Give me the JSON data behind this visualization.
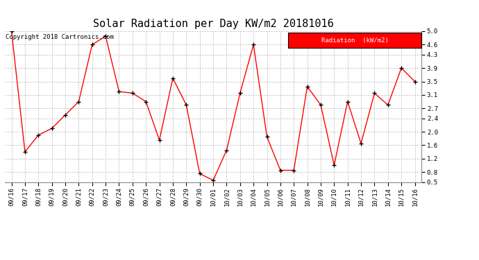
{
  "title": "Solar Radiation per Day KW/m2 20181016",
  "copyright_text": "Copyright 2018 Cartronics.com",
  "legend_label": "Radiation  (kW/m2)",
  "x_labels": [
    "09/16",
    "09/17",
    "09/18",
    "09/19",
    "09/20",
    "09/21",
    "09/22",
    "09/23",
    "09/24",
    "09/25",
    "09/26",
    "09/27",
    "09/28",
    "09/29",
    "09/30",
    "10/01",
    "10/02",
    "10/03",
    "10/04",
    "10/05",
    "10/06",
    "10/07",
    "10/08",
    "10/09",
    "10/10",
    "10/11",
    "10/12",
    "10/13",
    "10/14",
    "10/15",
    "10/16"
  ],
  "y_values": [
    5.0,
    1.4,
    1.9,
    2.1,
    2.5,
    2.9,
    4.6,
    4.85,
    3.2,
    3.15,
    2.9,
    1.75,
    3.6,
    2.8,
    0.75,
    0.55,
    1.45,
    3.15,
    4.6,
    1.85,
    0.85,
    0.85,
    3.35,
    2.8,
    1.0,
    2.9,
    1.65,
    3.15,
    2.8,
    3.9,
    3.5
  ],
  "line_color": "red",
  "marker_color": "black",
  "grid_color": "#bbbbbb",
  "background_color": "#ffffff",
  "plot_bg_color": "#ffffff",
  "ylim_min": 0.5,
  "ylim_max": 5.0,
  "yticks": [
    0.5,
    0.8,
    1.2,
    1.6,
    2.0,
    2.4,
    2.7,
    3.1,
    3.5,
    3.9,
    4.3,
    4.6,
    5.0
  ],
  "legend_bg_color": "#ff0000",
  "legend_text_color": "#ffffff",
  "title_fontsize": 11,
  "tick_fontsize": 6.5,
  "copyright_fontsize": 6.5
}
